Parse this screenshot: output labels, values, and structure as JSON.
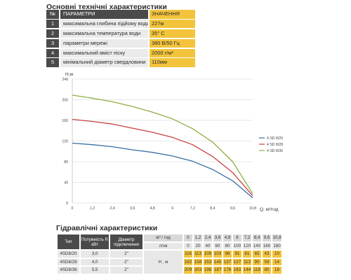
{
  "title_specs": "Основні технічні характеристики",
  "specs_header": {
    "label": "ПАРАМЕТРИ",
    "value": "ЗНАЧЕННЯ"
  },
  "specs": [
    {
      "n": "1",
      "label": "максимальна глибина підйому води",
      "value": "227м"
    },
    {
      "n": "2",
      "label": "максимальна температура води",
      "value": "35° С"
    },
    {
      "n": "3",
      "label": "параметри мережі",
      "value": "380 В/50 Гц"
    },
    {
      "n": "4",
      "label": "максимальний вміст піску",
      "value": "2000 г/м³"
    },
    {
      "n": "5",
      "label": "мінімальний діаметр свердловини",
      "value": "110мм"
    }
  ],
  "chart_data": {
    "type": "line",
    "ylabel": "H,м",
    "xlabel": "Q, м³/год",
    "xlim": [
      0,
      10.8
    ],
    "ylim": [
      0,
      240
    ],
    "x_ticks": [
      "0",
      "1,2",
      "2,4",
      "3,6",
      "4,8",
      "6",
      "7,2",
      "8,4",
      "9,6",
      "10,8"
    ],
    "y_ticks": [
      "0",
      "40",
      "80",
      "120",
      "160",
      "200",
      "240"
    ],
    "grid": "horizontal",
    "legend_position": "right",
    "series": [
      {
        "name": "4 SD 8/20",
        "color": "#3a6ea5",
        "x": [
          0,
          1.2,
          2.4,
          3.6,
          4.8,
          6,
          7.2,
          8.4,
          9.6,
          10.8
        ],
        "values": [
          116,
          113,
          109,
          103,
          98,
          91,
          81,
          65,
          43,
          10
        ]
      },
      {
        "name": "4 SD 8/28",
        "color": "#c94040",
        "x": [
          0,
          1.2,
          2.4,
          3.6,
          4.8,
          6,
          7.2,
          8.4,
          9.6,
          10.8
        ],
        "values": [
          162,
          158,
          153,
          145,
          137,
          127,
          113,
          90,
          59,
          14
        ]
      },
      {
        "name": "4 SD 8/36",
        "color": "#8fae3f",
        "x": [
          0,
          1.2,
          2.4,
          3.6,
          4.8,
          6,
          7.2,
          8.4,
          9.6,
          10.8
        ],
        "values": [
          209,
          203,
          196,
          187,
          176,
          163,
          144,
          118,
          80,
          18
        ]
      }
    ]
  },
  "title_hydraulic": "Гідравлічні характеристики",
  "hydraulic": {
    "h_type": "Тип",
    "h_power": "Потужність Р, кВт",
    "h_diam": "Діаметр підключення",
    "h_flow_unit": "м³ / год",
    "h_lpm_unit": "л/хв",
    "h_head": "Н , м",
    "flow": [
      "0",
      "1,2",
      "2,4",
      "3,6",
      "4,8",
      "6",
      "7,2",
      "8,4",
      "9,6",
      "10,8"
    ],
    "lpm": [
      "0",
      "20",
      "40",
      "60",
      "80",
      "100",
      "120",
      "140",
      "160",
      "180"
    ],
    "rows": [
      {
        "type": "4SD8/20",
        "power": "3,0",
        "diam": "2\"",
        "h": [
          "116",
          "113",
          "109",
          "103",
          "98",
          "91",
          "81",
          "65",
          "43",
          "10"
        ]
      },
      {
        "type": "4SD8/28",
        "power": "4,0",
        "diam": "2\"",
        "h": [
          "162",
          "158",
          "153",
          "145",
          "137",
          "127",
          "113",
          "90",
          "59",
          "14"
        ]
      },
      {
        "type": "4SD8/36",
        "power": "5,5",
        "diam": "2\"",
        "h": [
          "209",
          "203",
          "196",
          "187",
          "176",
          "163",
          "144",
          "118",
          "80",
          "18"
        ]
      }
    ]
  }
}
